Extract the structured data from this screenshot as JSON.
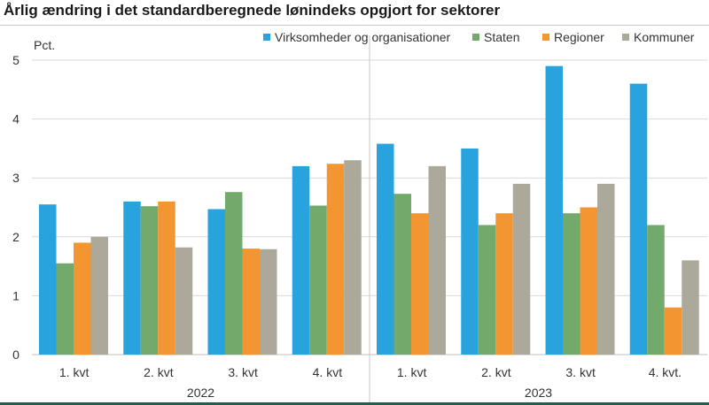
{
  "title": "Årlig ændring i det standardberegnede lønindeks opgjort for sektorer",
  "chart_data": {
    "type": "bar",
    "title": "Årlig ændring i det standardberegnede lønindeks opgjort for sektorer",
    "ylabel": "Pct.",
    "xlabel": "",
    "ylim": [
      0,
      5
    ],
    "yticks": [
      "0",
      "1",
      "2",
      "3",
      "4",
      "5"
    ],
    "grid": true,
    "legend_position": "top-right",
    "categories": [
      "1. kvt",
      "2. kvt",
      "3. kvt",
      "4. kvt",
      "1. kvt",
      "2. kvt",
      "3. kvt",
      "4. kvt."
    ],
    "groups": [
      {
        "label": "2022",
        "span": [
          0,
          3
        ]
      },
      {
        "label": "2023",
        "span": [
          4,
          7
        ]
      }
    ],
    "series": [
      {
        "name": "Virksomheder og organisationer",
        "color": "#29a3dd",
        "values": [
          2.55,
          2.6,
          2.47,
          3.2,
          3.58,
          3.5,
          4.9,
          4.6
        ]
      },
      {
        "name": "Staten",
        "color": "#72aa6b",
        "values": [
          1.55,
          2.52,
          2.76,
          2.53,
          2.73,
          2.2,
          2.4,
          2.2
        ]
      },
      {
        "name": "Regioner",
        "color": "#f39530",
        "values": [
          1.9,
          2.6,
          1.8,
          3.24,
          2.4,
          2.4,
          2.5,
          0.8
        ]
      },
      {
        "name": "Kommuner",
        "color": "#aca89a",
        "values": [
          2.0,
          1.82,
          1.79,
          3.3,
          3.2,
          2.9,
          2.9,
          1.6
        ]
      }
    ]
  }
}
